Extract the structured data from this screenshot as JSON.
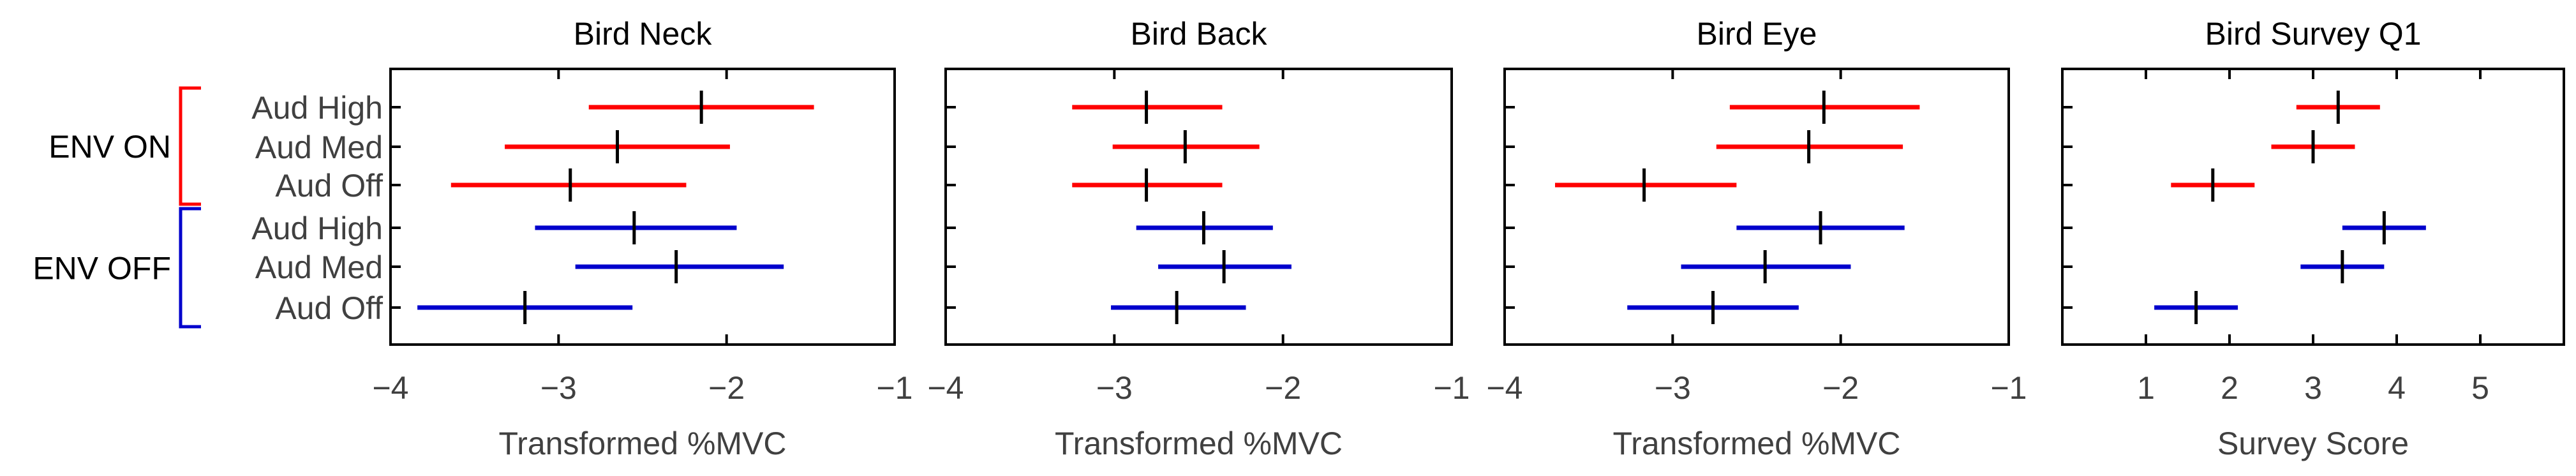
{
  "colors": {
    "env_on": "#ff0000",
    "env_off": "#0000cc",
    "center_mark": "#000000",
    "axes": "#000000",
    "tick_label": "#404040",
    "title": "#000000"
  },
  "groups": [
    {
      "label": "ENV ON",
      "color": "#ff0000",
      "rows": [
        0,
        2
      ]
    },
    {
      "label": "ENV OFF",
      "color": "#0000cc",
      "rows": [
        3,
        5
      ]
    }
  ],
  "row_labels": [
    "Aud High",
    "Aud Med",
    "Aud Off",
    "Aud High",
    "Aud Med",
    "Aud Off"
  ],
  "chart_data": [
    {
      "type": "errorbar",
      "title": "Bird Neck",
      "xlabel": "Transformed %MVC",
      "xlim": [
        -4,
        -1
      ],
      "xticks": [
        -4,
        -3,
        -2,
        -1
      ],
      "series": [
        {
          "name": "ENV ON",
          "color": "#ff0000",
          "points": [
            {
              "row": "Aud High",
              "center": -2.15,
              "low": -2.82,
              "high": -1.48
            },
            {
              "row": "Aud Med",
              "center": -2.65,
              "low": -3.32,
              "high": -1.98
            },
            {
              "row": "Aud Off",
              "center": -2.93,
              "low": -3.64,
              "high": -2.24
            }
          ]
        },
        {
          "name": "ENV OFF",
          "color": "#0000cc",
          "points": [
            {
              "row": "Aud High",
              "center": -2.55,
              "low": -3.14,
              "high": -1.94
            },
            {
              "row": "Aud Med",
              "center": -2.3,
              "low": -2.9,
              "high": -1.66
            },
            {
              "row": "Aud Off",
              "center": -3.2,
              "low": -3.84,
              "high": -2.56
            }
          ]
        }
      ]
    },
    {
      "type": "errorbar",
      "title": "Bird Back",
      "xlabel": "Transformed %MVC",
      "xlim": [
        -4,
        -1
      ],
      "xticks": [
        -4,
        -3,
        -2,
        -1
      ],
      "series": [
        {
          "name": "ENV ON",
          "color": "#ff0000",
          "points": [
            {
              "row": "Aud High",
              "center": -2.81,
              "low": -3.25,
              "high": -2.36
            },
            {
              "row": "Aud Med",
              "center": -2.58,
              "low": -3.01,
              "high": -2.14
            },
            {
              "row": "Aud Off",
              "center": -2.81,
              "low": -3.25,
              "high": -2.36
            }
          ]
        },
        {
          "name": "ENV OFF",
          "color": "#0000cc",
          "points": [
            {
              "row": "Aud High",
              "center": -2.47,
              "low": -2.87,
              "high": -2.06
            },
            {
              "row": "Aud Med",
              "center": -2.35,
              "low": -2.74,
              "high": -1.95
            },
            {
              "row": "Aud Off",
              "center": -2.63,
              "low": -3.02,
              "high": -2.22
            }
          ]
        }
      ]
    },
    {
      "type": "errorbar",
      "title": "Bird Eye",
      "xlabel": "Transformed %MVC",
      "xlim": [
        -4,
        -1
      ],
      "xticks": [
        -4,
        -3,
        -2,
        -1
      ],
      "series": [
        {
          "name": "ENV ON",
          "color": "#ff0000",
          "points": [
            {
              "row": "Aud High",
              "center": -2.1,
              "low": -2.66,
              "high": -1.53
            },
            {
              "row": "Aud Med",
              "center": -2.19,
              "low": -2.74,
              "high": -1.63
            },
            {
              "row": "Aud Off",
              "center": -3.17,
              "low": -3.7,
              "high": -2.62
            }
          ]
        },
        {
          "name": "ENV OFF",
          "color": "#0000cc",
          "points": [
            {
              "row": "Aud High",
              "center": -2.12,
              "low": -2.62,
              "high": -1.62
            },
            {
              "row": "Aud Med",
              "center": -2.45,
              "low": -2.95,
              "high": -1.94
            },
            {
              "row": "Aud Off",
              "center": -2.76,
              "low": -3.27,
              "high": -2.25
            }
          ]
        }
      ]
    },
    {
      "type": "errorbar",
      "title": "Bird Survey Q1",
      "xlabel": "Survey Score",
      "xlim": [
        0,
        6
      ],
      "xticks": [
        1,
        2,
        3,
        4,
        5
      ],
      "series": [
        {
          "name": "ENV ON",
          "color": "#ff0000",
          "points": [
            {
              "row": "Aud High",
              "center": 3.3,
              "low": 2.8,
              "high": 3.8
            },
            {
              "row": "Aud Med",
              "center": 3.0,
              "low": 2.5,
              "high": 3.5
            },
            {
              "row": "Aud Off",
              "center": 1.8,
              "low": 1.3,
              "high": 2.3
            }
          ]
        },
        {
          "name": "ENV OFF",
          "color": "#0000cc",
          "points": [
            {
              "row": "Aud High",
              "center": 3.85,
              "low": 3.35,
              "high": 4.35
            },
            {
              "row": "Aud Med",
              "center": 3.35,
              "low": 2.85,
              "high": 3.85
            },
            {
              "row": "Aud Off",
              "center": 1.6,
              "low": 1.1,
              "high": 2.1
            }
          ]
        }
      ]
    }
  ]
}
